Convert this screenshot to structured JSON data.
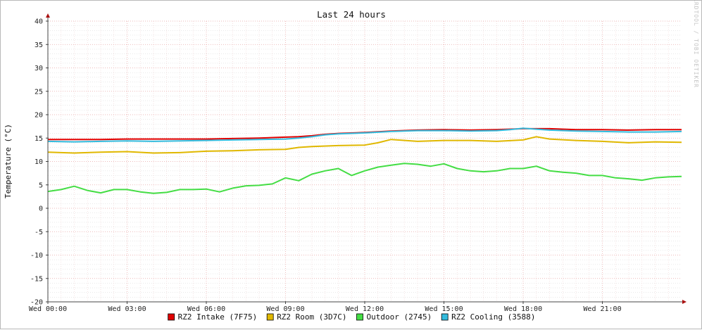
{
  "chart_data": {
    "type": "line",
    "title": "Last 24 hours",
    "ylabel": "Temperature (°C)",
    "xlabel": "",
    "watermark": "RRDTOOL / TOBI OETIKER",
    "ylim": [
      -20,
      40
    ],
    "xlim": [
      0,
      24
    ],
    "y_ticks": [
      40,
      35,
      30,
      25,
      20,
      15,
      10,
      5,
      0,
      -5,
      -10,
      -15,
      -20
    ],
    "x_ticks": [
      {
        "x": 0,
        "label": "Wed 00:00"
      },
      {
        "x": 3,
        "label": "Wed 03:00"
      },
      {
        "x": 6,
        "label": "Wed 06:00"
      },
      {
        "x": 9,
        "label": "Wed 09:00"
      },
      {
        "x": 12,
        "label": "Wed 12:00"
      },
      {
        "x": 15,
        "label": "Wed 15:00"
      },
      {
        "x": 18,
        "label": "Wed 18:00"
      },
      {
        "x": 21,
        "label": "Wed 21:00"
      }
    ],
    "grid": true,
    "legend_position": "bottom-center",
    "series": [
      {
        "name": "RZ2 Intake (7F75)",
        "color": "#e00000",
        "x": [
          0,
          1,
          2,
          3,
          4,
          5,
          6,
          7,
          8,
          9,
          9.5,
          10,
          10.5,
          11,
          12,
          13,
          14,
          15,
          16,
          17,
          18,
          19,
          20,
          21,
          22,
          23,
          24
        ],
        "y": [
          14.7,
          14.7,
          14.7,
          14.8,
          14.8,
          14.8,
          14.8,
          14.9,
          15.0,
          15.2,
          15.3,
          15.5,
          15.8,
          16.0,
          16.2,
          16.5,
          16.7,
          16.8,
          16.7,
          16.8,
          17.0,
          17.0,
          16.8,
          16.8,
          16.7,
          16.8,
          16.8
        ]
      },
      {
        "name": "RZ2 Room (3D7C)",
        "color": "#e0b800",
        "x": [
          0,
          1,
          2,
          3,
          4,
          5,
          6,
          7,
          8,
          9,
          9.5,
          10,
          11,
          12,
          12.5,
          13,
          14,
          15,
          16,
          17,
          18,
          18.5,
          19,
          20,
          21,
          22,
          23,
          24
        ],
        "y": [
          12.0,
          11.8,
          12.0,
          12.1,
          11.8,
          11.9,
          12.2,
          12.3,
          12.5,
          12.6,
          13.0,
          13.2,
          13.4,
          13.5,
          14.0,
          14.7,
          14.3,
          14.5,
          14.5,
          14.3,
          14.6,
          15.3,
          14.8,
          14.5,
          14.3,
          14.0,
          14.2,
          14.1
        ]
      },
      {
        "name": "Outdoor (2745)",
        "color": "#44dd44",
        "x": [
          0,
          0.5,
          1,
          1.5,
          2,
          2.5,
          3,
          3.5,
          4,
          4.5,
          5,
          5.5,
          6,
          6.5,
          7,
          7.5,
          8,
          8.5,
          9,
          9.5,
          10,
          10.5,
          11,
          11.5,
          12,
          12.5,
          13,
          13.5,
          14,
          14.5,
          15,
          15.5,
          16,
          16.5,
          17,
          17.5,
          18,
          18.5,
          19,
          19.5,
          20,
          20.5,
          21,
          21.5,
          22,
          22.5,
          23,
          23.5,
          24
        ],
        "y": [
          3.6,
          4.0,
          4.7,
          3.8,
          3.3,
          4.0,
          4.0,
          3.5,
          3.2,
          3.4,
          4.0,
          4.0,
          4.1,
          3.5,
          4.3,
          4.8,
          4.9,
          5.2,
          6.5,
          5.9,
          7.3,
          8.0,
          8.5,
          7.0,
          8.0,
          8.8,
          9.2,
          9.6,
          9.4,
          9.0,
          9.5,
          8.5,
          8.0,
          7.8,
          8.0,
          8.5,
          8.5,
          9.0,
          8.0,
          7.7,
          7.5,
          7.0,
          7.0,
          6.5,
          6.3,
          6.0,
          6.5,
          6.7,
          6.8
        ]
      },
      {
        "name": "RZ2 Cooling (3588)",
        "color": "#33bbdd",
        "x": [
          0,
          1,
          2,
          3,
          4,
          5,
          6,
          7,
          8,
          9,
          9.5,
          10,
          10.5,
          11,
          12,
          13,
          14,
          15,
          16,
          17,
          17.5,
          18,
          18.5,
          19,
          20,
          21,
          22,
          23,
          24
        ],
        "y": [
          14.3,
          14.2,
          14.3,
          14.4,
          14.3,
          14.4,
          14.5,
          14.6,
          14.7,
          14.8,
          15.0,
          15.3,
          15.7,
          15.9,
          16.1,
          16.4,
          16.6,
          16.6,
          16.5,
          16.6,
          16.8,
          17.1,
          16.9,
          16.7,
          16.5,
          16.4,
          16.3,
          16.3,
          16.4
        ]
      }
    ]
  }
}
